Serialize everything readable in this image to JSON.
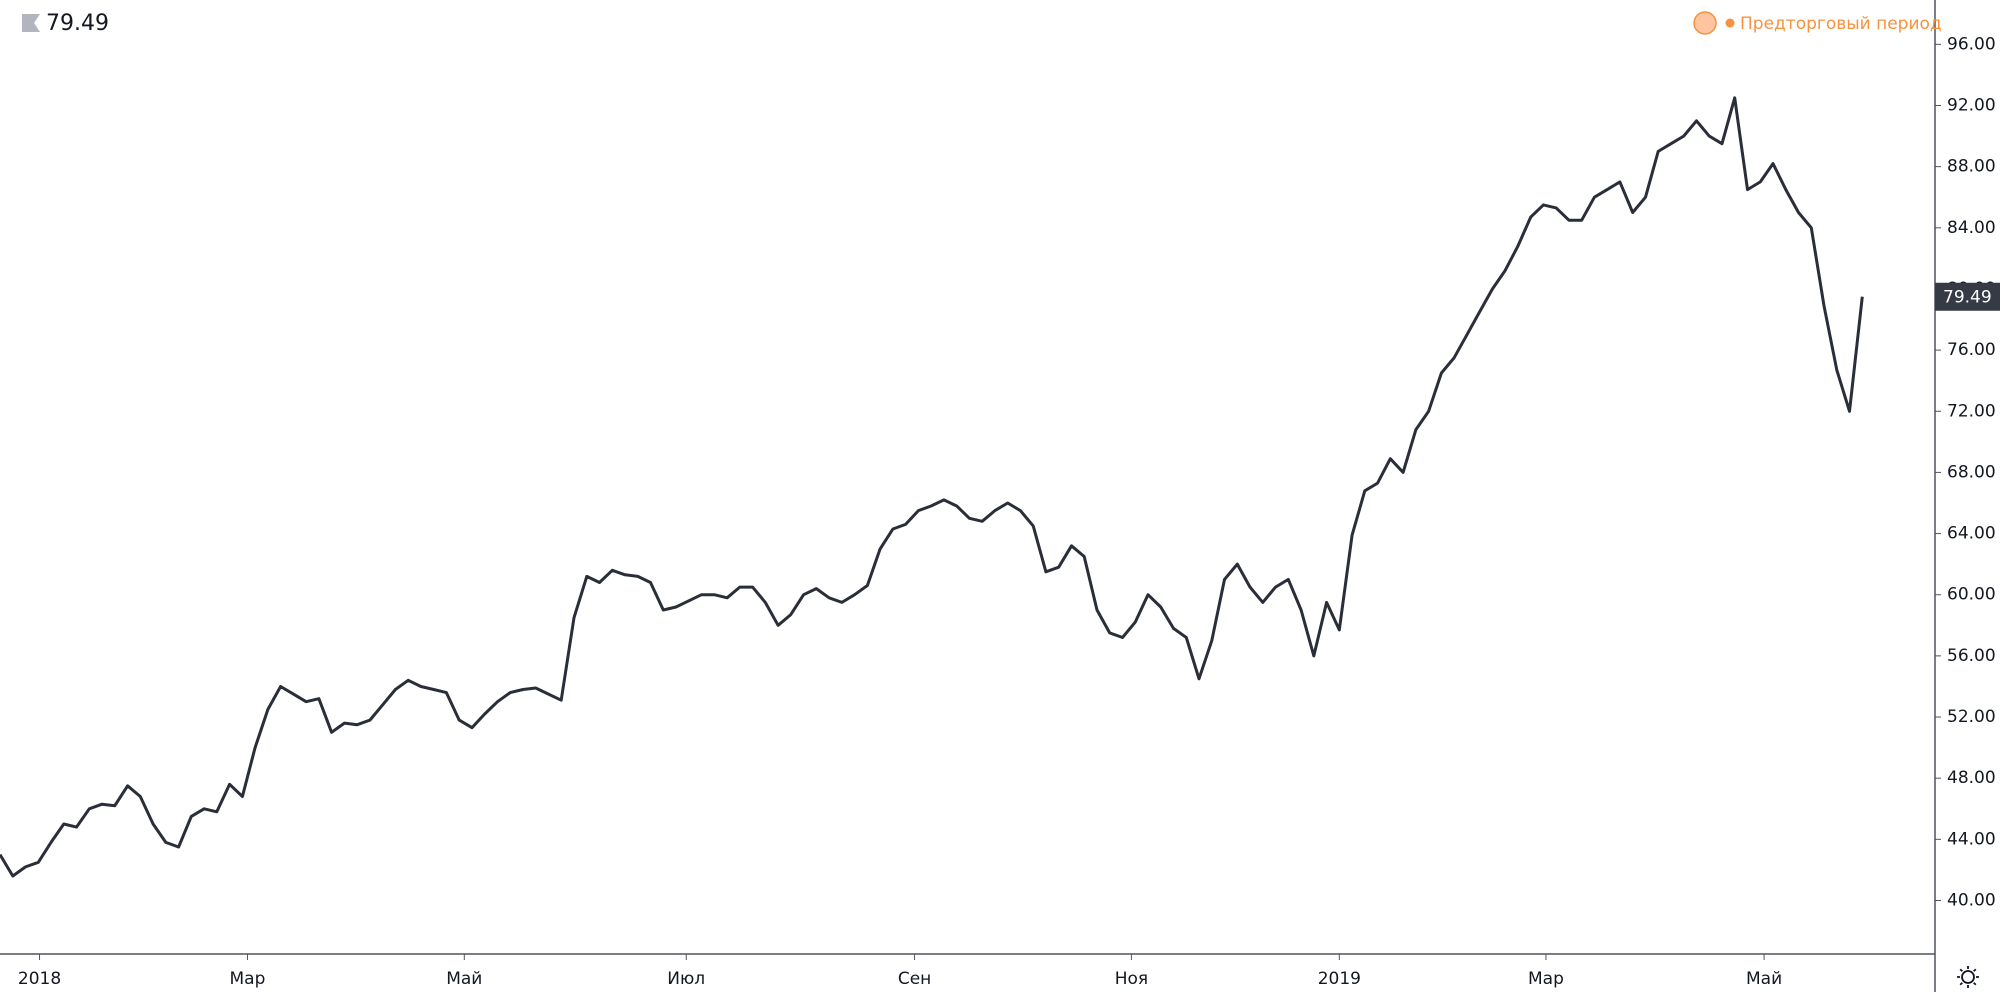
{
  "chart_data": {
    "type": "line",
    "session": "Предторговый период",
    "color": "#2a2e39",
    "session_color": "#f7923f",
    "values": [
      43.0,
      41.6,
      42.2,
      42.5,
      43.8,
      45.0,
      44.8,
      46.0,
      46.3,
      46.2,
      47.5,
      46.8,
      45.0,
      43.8,
      43.5,
      45.5,
      46.0,
      45.8,
      47.6,
      46.8,
      50.0,
      52.5,
      54.0,
      53.5,
      53.0,
      53.2,
      51.0,
      51.6,
      51.5,
      51.8,
      52.8,
      53.8,
      54.4,
      54.0,
      53.8,
      53.6,
      51.8,
      51.3,
      52.2,
      53.0,
      53.6,
      53.8,
      53.9,
      53.5,
      53.1,
      58.5,
      61.2,
      60.8,
      61.6,
      61.3,
      61.2,
      60.8,
      59.0,
      59.2,
      59.6,
      60.0,
      60.0,
      59.8,
      60.5,
      60.5,
      59.5,
      58.0,
      58.7,
      60.0,
      60.4,
      59.8,
      59.5,
      60.0,
      60.6,
      63.0,
      64.3,
      64.6,
      65.5,
      65.8,
      66.2,
      65.8,
      65.0,
      64.8,
      65.5,
      66.0,
      65.5,
      64.5,
      61.5,
      61.8,
      63.2,
      62.5,
      59.0,
      57.5,
      57.2,
      58.2,
      60.0,
      59.2,
      57.8,
      57.2,
      54.5,
      57.0,
      61.0,
      62.0,
      60.5,
      59.5,
      60.5,
      61.0,
      59.0,
      56.0,
      59.5,
      57.7,
      63.9,
      66.8,
      67.3,
      68.9,
      68.0,
      70.8,
      72.0,
      74.5,
      75.5,
      77.0,
      78.5,
      80.0,
      81.2,
      82.8,
      84.7,
      85.5,
      85.3,
      84.5,
      84.5,
      86.0,
      86.5,
      87.0,
      85.0,
      86.0,
      89.0,
      89.5,
      90.0,
      91.0,
      90.0,
      89.5,
      92.5,
      86.5,
      87.0,
      88.2,
      86.5,
      85.0,
      84.0,
      78.9,
      74.7,
      72.0,
      79.49
    ],
    "xlim": [
      0,
      151.7
    ],
    "xticks": [
      {
        "value": 3.1,
        "label": "2018"
      },
      {
        "value": 19.4,
        "label": "Мар"
      },
      {
        "value": 36.4,
        "label": "Май"
      },
      {
        "value": 53.8,
        "label": "Июл"
      },
      {
        "value": 71.7,
        "label": "Сен"
      },
      {
        "value": 88.7,
        "label": "Ноя"
      },
      {
        "value": 105,
        "label": "2019"
      },
      {
        "value": 121.2,
        "label": "Мар"
      },
      {
        "value": 138.3,
        "label": "Май"
      }
    ],
    "ylim": [
      36.5,
      98.9
    ],
    "yticks": [
      {
        "value": 40,
        "label": "40.00"
      },
      {
        "value": 44,
        "label": "44.00"
      },
      {
        "value": 48,
        "label": "48.00"
      },
      {
        "value": 52,
        "label": "52.00"
      },
      {
        "value": 56,
        "label": "56.00"
      },
      {
        "value": 60,
        "label": "60.00"
      },
      {
        "value": 64,
        "label": "64.00"
      },
      {
        "value": 68,
        "label": "68.00"
      },
      {
        "value": 72,
        "label": "72.00"
      },
      {
        "value": 76,
        "label": "76.00"
      },
      {
        "value": 80,
        "label": "80.00"
      },
      {
        "value": 84,
        "label": "84.00"
      },
      {
        "value": 88,
        "label": "88.00"
      },
      {
        "value": 92,
        "label": "92.00"
      },
      {
        "value": 96,
        "label": "96.00"
      }
    ]
  }
}
